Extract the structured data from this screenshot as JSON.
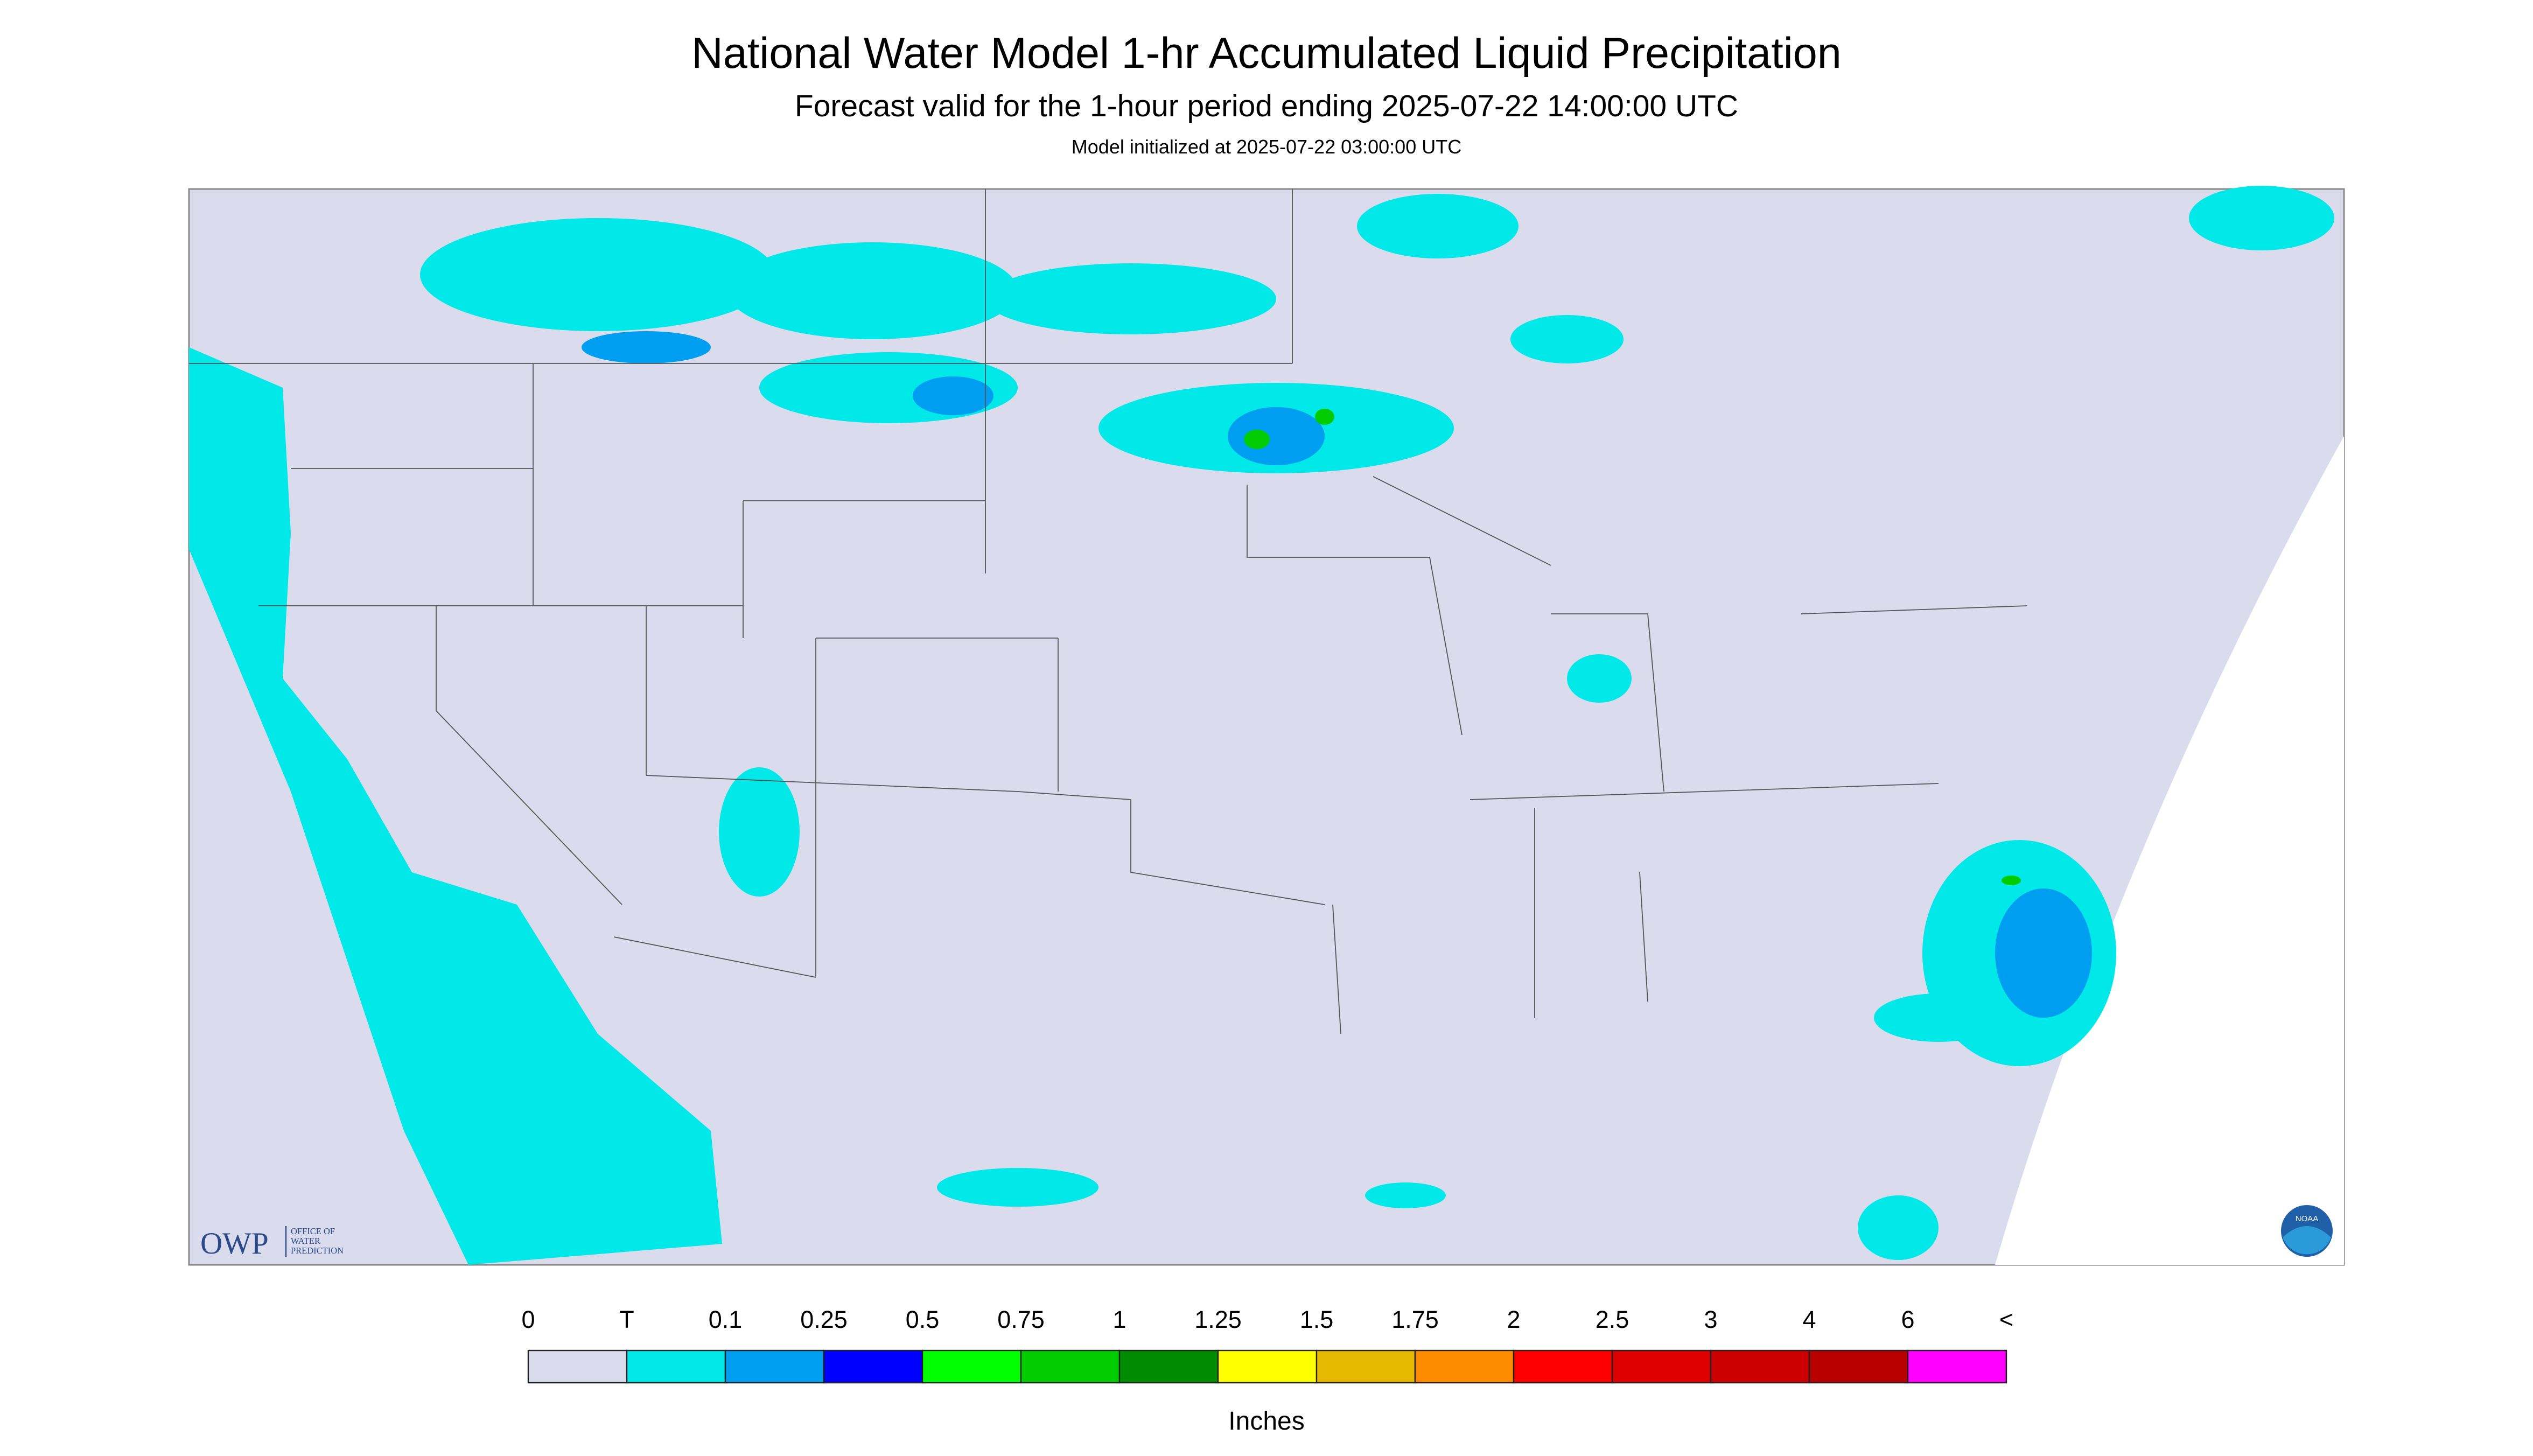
{
  "header": {
    "title": "National Water Model 1-hr Accumulated Liquid Precipitation",
    "subtitle": "Forecast valid for the 1-hour period ending 2025-07-22 14:00:00 UTC",
    "note": "Model initialized at 2025-07-22 03:00:00 UTC"
  },
  "logos": {
    "owp": "OWP",
    "owp_lines": [
      "OFFICE OF",
      "WATER",
      "PREDICTION"
    ],
    "noaa": "NOAA"
  },
  "legend": {
    "labels": [
      "0",
      "T",
      "0.1",
      "0.25",
      "0.5",
      "0.75",
      "1",
      "1.25",
      "1.5",
      "1.75",
      "2",
      "2.5",
      "3",
      "4",
      "6",
      "<"
    ],
    "colors": [
      "#dadcee",
      "#00e8e8",
      "#009ef0",
      "#0000ff",
      "#00ff00",
      "#00cc00",
      "#008b00",
      "#ffff00",
      "#e6b800",
      "#ff8c00",
      "#ff0000",
      "#dd0000",
      "#cc0000",
      "#b80000",
      "#ff00ff",
      "#9955cc"
    ],
    "units": "Inches"
  }
}
